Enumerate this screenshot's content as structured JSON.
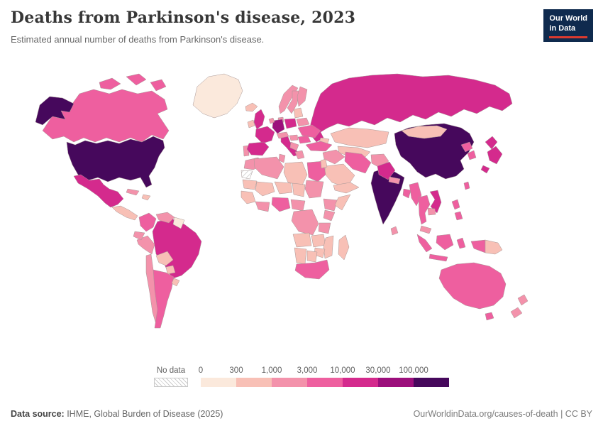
{
  "header": {
    "title": "Deaths from Parkinson's disease, 2023",
    "subtitle": "Estimated annual number of deaths from Parkinson's disease."
  },
  "logo": {
    "line1": "Our World",
    "line2": "in Data"
  },
  "footer": {
    "source_label": "Data source:",
    "source_text": " IHME, Global Burden of Disease (2025)",
    "credit": "OurWorldinData.org/causes-of-death | CC BY"
  },
  "chart_data": {
    "type": "choropleth",
    "title": "Deaths from Parkinson's disease, 2023",
    "subtitle": "Estimated annual number of deaths from Parkinson's disease.",
    "unit": "deaths",
    "year": 2023,
    "legend": {
      "position": "bottom",
      "no_data_label": "No data",
      "ticks": [
        "0",
        "300",
        "1,000",
        "3,000",
        "10,000",
        "30,000",
        "100,000"
      ],
      "bucket_ranges": [
        "0-300",
        "300-1,000",
        "1,000-3,000",
        "3,000-10,000",
        "10,000-30,000",
        "30,000-100,000",
        "100,000+"
      ],
      "colors": [
        "#fbe9dc",
        "#f8c0b6",
        "#f392ab",
        "#ee5f9f",
        "#d42a8d",
        "#9c0f7c",
        "#46085c"
      ],
      "no_data_fill": "hatch"
    },
    "countries": {
      "greenland": {
        "name": "Greenland",
        "bucket": 0
      },
      "iceland": {
        "name": "Iceland",
        "bucket": 1
      },
      "canada": {
        "name": "Canada",
        "bucket": 3
      },
      "usa": {
        "name": "United States",
        "bucket": 6
      },
      "mexico": {
        "name": "Mexico",
        "bucket": 4
      },
      "central-america": {
        "name": "Central America",
        "bucket": 1
      },
      "cuba": {
        "name": "Cuba",
        "bucket": 2
      },
      "hispaniola": {
        "name": "Haiti & Dominican Republic",
        "bucket": 1
      },
      "colombia": {
        "name": "Colombia",
        "bucket": 3
      },
      "venezuela": {
        "name": "Venezuela",
        "bucket": 2
      },
      "guyanas": {
        "name": "Guyana & Suriname",
        "bucket": 0
      },
      "ecuador": {
        "name": "Ecuador",
        "bucket": 2
      },
      "peru": {
        "name": "Peru",
        "bucket": 2
      },
      "brazil": {
        "name": "Brazil",
        "bucket": 4
      },
      "bolivia": {
        "name": "Bolivia",
        "bucket": 1
      },
      "paraguay": {
        "name": "Paraguay",
        "bucket": 1
      },
      "chile": {
        "name": "Chile",
        "bucket": 2
      },
      "argentina": {
        "name": "Argentina",
        "bucket": 3
      },
      "uruguay": {
        "name": "Uruguay",
        "bucket": 1
      },
      "ireland": {
        "name": "Ireland",
        "bucket": 1
      },
      "uk": {
        "name": "United Kingdom",
        "bucket": 4
      },
      "norway": {
        "name": "Norway",
        "bucket": 2
      },
      "sweden": {
        "name": "Sweden",
        "bucket": 2
      },
      "finland": {
        "name": "Finland",
        "bucket": 2
      },
      "denmark": {
        "name": "Denmark",
        "bucket": 2
      },
      "baltics": {
        "name": "Baltic states",
        "bucket": 1
      },
      "belarus": {
        "name": "Belarus",
        "bucket": 2
      },
      "poland": {
        "name": "Poland",
        "bucket": 4
      },
      "germany": {
        "name": "Germany",
        "bucket": 5
      },
      "netherlands": {
        "name": "Netherlands",
        "bucket": 2
      },
      "france": {
        "name": "France",
        "bucket": 4
      },
      "portugal": {
        "name": "Portugal",
        "bucket": 2
      },
      "spain": {
        "name": "Spain",
        "bucket": 4
      },
      "italy": {
        "name": "Italy",
        "bucket": 4
      },
      "alpine": {
        "name": "Switzerland & Austria",
        "bucket": 2
      },
      "hungary": {
        "name": "Hungary",
        "bucket": 2
      },
      "ukraine": {
        "name": "Ukraine",
        "bucket": 3
      },
      "romania": {
        "name": "Romania",
        "bucket": 3
      },
      "balkans": {
        "name": "Balkans",
        "bucket": 2
      },
      "greece": {
        "name": "Greece",
        "bucket": 2
      },
      "russia": {
        "name": "Russia",
        "bucket": 4
      },
      "kazakhstan": {
        "name": "Kazakhstan",
        "bucket": 1
      },
      "central-asia": {
        "name": "Uzbekistan & Turkmenistan",
        "bucket": 1
      },
      "caucasus": {
        "name": "Caucasus",
        "bucket": 1
      },
      "turkey": {
        "name": "Turkey",
        "bucket": 3
      },
      "syria-iraq": {
        "name": "Syria & Iraq",
        "bucket": 2
      },
      "levant": {
        "name": "Israel & Jordan",
        "bucket": 1
      },
      "iran": {
        "name": "Iran",
        "bucket": 3
      },
      "afghanistan": {
        "name": "Afghanistan",
        "bucket": 2
      },
      "pakistan": {
        "name": "Pakistan",
        "bucket": 4
      },
      "saudi-arabia": {
        "name": "Saudi Arabia",
        "bucket": 1
      },
      "yemen-oman": {
        "name": "Yemen & Oman",
        "bucket": 1
      },
      "western-sahara": {
        "name": "Western Sahara",
        "bucket": -1
      },
      "morocco": {
        "name": "Morocco",
        "bucket": 2
      },
      "algeria": {
        "name": "Algeria",
        "bucket": 2
      },
      "tunisia": {
        "name": "Tunisia",
        "bucket": 2
      },
      "libya": {
        "name": "Libya",
        "bucket": 1
      },
      "egypt": {
        "name": "Egypt",
        "bucket": 3
      },
      "mauritania": {
        "name": "Mauritania",
        "bucket": 1
      },
      "mali": {
        "name": "Mali",
        "bucket": 1
      },
      "niger": {
        "name": "Niger",
        "bucket": 1
      },
      "chad": {
        "name": "Chad",
        "bucket": 1
      },
      "sudan": {
        "name": "Sudan",
        "bucket": 2
      },
      "senegal-guinea": {
        "name": "Senegal & Guinea",
        "bucket": 1
      },
      "ghana": {
        "name": "Ghana & Côte d'Ivoire",
        "bucket": 2
      },
      "nigeria": {
        "name": "Nigeria",
        "bucket": 3
      },
      "cameroon": {
        "name": "Cameroon & C.A.R.",
        "bucket": 2
      },
      "ethiopia": {
        "name": "Ethiopia",
        "bucket": 2
      },
      "somalia": {
        "name": "Somalia",
        "bucket": 1
      },
      "kenya": {
        "name": "Kenya",
        "bucket": 2
      },
      "drc": {
        "name": "Democratic Republic of Congo",
        "bucket": 2
      },
      "tanzania": {
        "name": "Tanzania",
        "bucket": 2
      },
      "angola": {
        "name": "Angola",
        "bucket": 1
      },
      "zambia": {
        "name": "Zambia",
        "bucket": 1
      },
      "mozambique": {
        "name": "Mozambique",
        "bucket": 1
      },
      "zimbabwe": {
        "name": "Zimbabwe",
        "bucket": 1
      },
      "namibia": {
        "name": "Namibia",
        "bucket": 1
      },
      "botswana": {
        "name": "Botswana",
        "bucket": 1
      },
      "south-africa": {
        "name": "South Africa",
        "bucket": 3
      },
      "madagascar": {
        "name": "Madagascar",
        "bucket": 1
      },
      "india": {
        "name": "India",
        "bucket": 6
      },
      "nepal": {
        "name": "Nepal",
        "bucket": 2
      },
      "bangladesh": {
        "name": "Bangladesh",
        "bucket": 3
      },
      "sri-lanka": {
        "name": "Sri Lanka",
        "bucket": 2
      },
      "myanmar": {
        "name": "Myanmar",
        "bucket": 3
      },
      "thailand": {
        "name": "Thailand",
        "bucket": 3
      },
      "vietnam": {
        "name": "Vietnam",
        "bucket": 4
      },
      "cambodia": {
        "name": "Cambodia",
        "bucket": 2
      },
      "malaysia": {
        "name": "Malaysia",
        "bucket": 2
      },
      "china": {
        "name": "China",
        "bucket": 6
      },
      "mongolia": {
        "name": "Mongolia",
        "bucket": 1
      },
      "north-korea": {
        "name": "North Korea",
        "bucket": 3
      },
      "south-korea": {
        "name": "South Korea",
        "bucket": 3
      },
      "japan": {
        "name": "Japan",
        "bucket": 4
      },
      "taiwan": {
        "name": "Taiwan",
        "bucket": 3
      },
      "philippines": {
        "name": "Philippines",
        "bucket": 3
      },
      "indonesia": {
        "name": "Indonesia",
        "bucket": 3
      },
      "papua-indonesia": {
        "name": "Indonesia (Papua)",
        "bucket": 3
      },
      "png": {
        "name": "Papua New Guinea",
        "bucket": 1
      },
      "australia": {
        "name": "Australia",
        "bucket": 3
      },
      "new-zealand": {
        "name": "New Zealand",
        "bucket": 2
      }
    }
  }
}
